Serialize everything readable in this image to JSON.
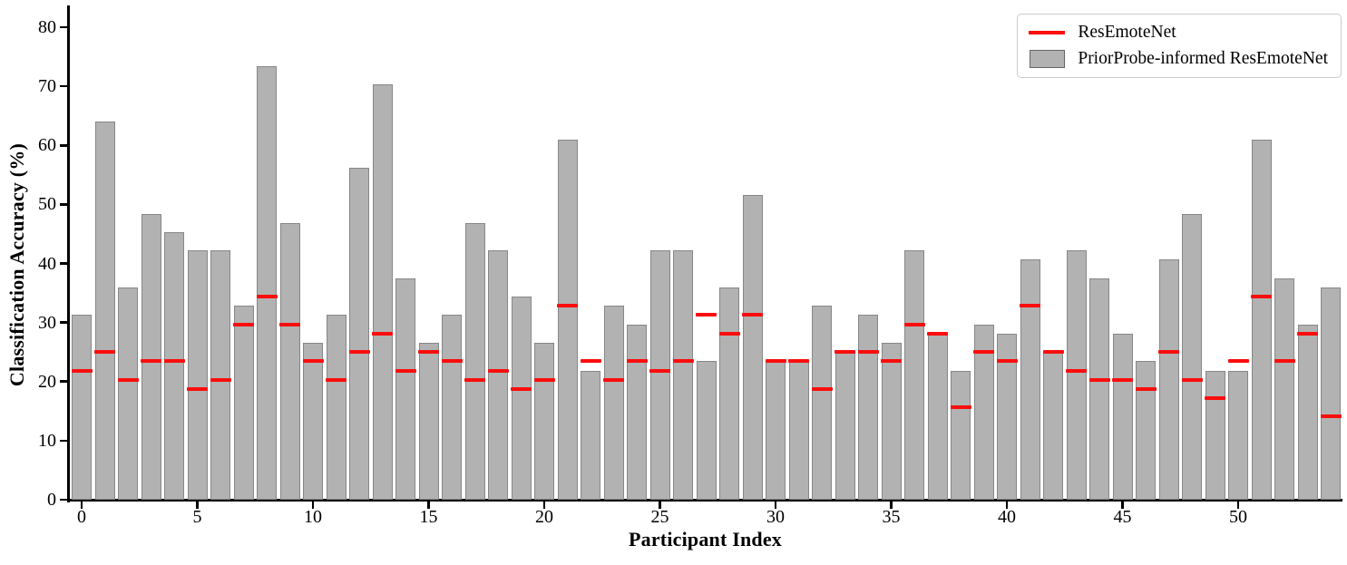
{
  "chart_data": {
    "type": "bar",
    "title": "",
    "xlabel": "Participant Index",
    "ylabel": "Classification Accuracy (%)",
    "x": [
      0,
      1,
      2,
      3,
      4,
      5,
      6,
      7,
      8,
      9,
      10,
      11,
      12,
      13,
      14,
      15,
      16,
      17,
      18,
      19,
      20,
      21,
      22,
      23,
      24,
      25,
      26,
      27,
      28,
      29,
      30,
      31,
      32,
      33,
      34,
      35,
      36,
      37,
      38,
      39,
      40,
      41,
      42,
      43,
      44,
      45,
      46,
      47,
      48,
      49,
      50,
      51,
      52,
      53,
      54
    ],
    "series": [
      {
        "name": "PriorProbe-informed ResEmoteNet",
        "style": "bar",
        "color": "#b2b2b2",
        "values": [
          31.25,
          64.06,
          35.94,
          48.44,
          45.31,
          42.19,
          42.19,
          32.81,
          73.44,
          46.88,
          26.56,
          31.25,
          56.25,
          70.31,
          37.5,
          26.56,
          31.25,
          46.88,
          42.19,
          34.38,
          26.56,
          60.94,
          21.88,
          32.81,
          29.69,
          42.19,
          42.19,
          23.44,
          35.94,
          51.56,
          23.44,
          23.44,
          32.81,
          25.0,
          31.25,
          26.56,
          42.19,
          28.13,
          21.88,
          29.69,
          28.13,
          40.63,
          25.0,
          42.19,
          37.5,
          28.13,
          23.44,
          40.63,
          48.44,
          21.88,
          21.88,
          60.94,
          37.5,
          29.69,
          35.94
        ]
      },
      {
        "name": "ResEmoteNet",
        "style": "dash-marker",
        "color": "#fb0d0d",
        "values": [
          21.88,
          25.0,
          20.31,
          23.44,
          23.44,
          18.75,
          20.31,
          29.69,
          34.38,
          29.69,
          23.44,
          20.31,
          25.0,
          28.13,
          21.88,
          25.0,
          23.44,
          20.31,
          21.88,
          18.75,
          20.31,
          32.81,
          23.44,
          20.31,
          23.44,
          21.88,
          23.44,
          31.25,
          28.13,
          31.25,
          23.44,
          23.44,
          18.75,
          25.0,
          25.0,
          23.44,
          29.69,
          28.13,
          15.63,
          25.0,
          23.44,
          32.81,
          25.0,
          21.88,
          20.31,
          20.31,
          18.75,
          25.0,
          20.31,
          17.19,
          23.44,
          34.38,
          23.44,
          28.13,
          14.06
        ]
      }
    ],
    "yticks": [
      0,
      10,
      20,
      30,
      40,
      50,
      60,
      70,
      80
    ],
    "xticks": [
      0,
      5,
      10,
      15,
      20,
      25,
      30,
      35,
      40,
      45,
      50
    ],
    "ylim": [
      0,
      83
    ],
    "xlim": [
      -0.6,
      54.6
    ],
    "grid": false,
    "legend_position": "upper right",
    "legend": [
      {
        "label": "ResEmoteNet",
        "swatch": "line",
        "color": "#fb0d0d"
      },
      {
        "label": "PriorProbe-informed ResEmoteNet",
        "swatch": "patch",
        "color": "#b2b2b2"
      }
    ]
  }
}
